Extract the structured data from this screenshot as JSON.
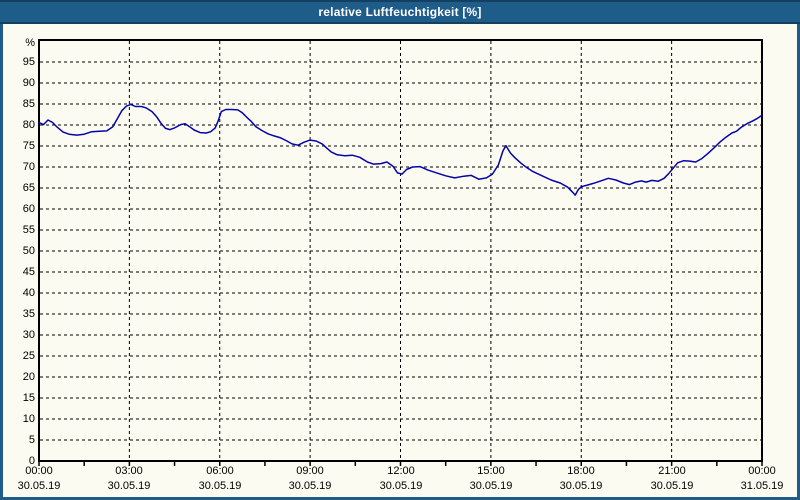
{
  "window": {
    "title": "relative Luftfeuchtigkeit [%]",
    "titlebar_color": "#1e5c8a",
    "titlebar_edge_color": "#143f61",
    "client_background_color": "#fbfbf2"
  },
  "chart_data": {
    "type": "line",
    "title": "relative Luftfeuchtigkeit [%]",
    "xlabel": "",
    "ylabel": "%",
    "ylim": [
      0,
      100
    ],
    "y_tick_step": 5,
    "y_tick_labels": [
      "95",
      "90",
      "85",
      "80",
      "75",
      "70",
      "65",
      "60",
      "55",
      "50",
      "45",
      "40",
      "35",
      "30",
      "25",
      "20",
      "15",
      "10",
      "5",
      "0"
    ],
    "x_range_hours": [
      0,
      24
    ],
    "x_minor_tick_hours": 1.5,
    "x_label_interval_hours": 3,
    "x_tick_labels": [
      {
        "hour": 0,
        "time": "00:00",
        "date": "30.05.19"
      },
      {
        "hour": 3,
        "time": "03:00",
        "date": "30.05.19"
      },
      {
        "hour": 6,
        "time": "06:00",
        "date": "30.05.19"
      },
      {
        "hour": 9,
        "time": "09:00",
        "date": "30.05.19"
      },
      {
        "hour": 12,
        "time": "12:00",
        "date": "30.05.19"
      },
      {
        "hour": 15,
        "time": "15:00",
        "date": "30.05.19"
      },
      {
        "hour": 18,
        "time": "18:00",
        "date": "30.05.19"
      },
      {
        "hour": 21,
        "time": "21:00",
        "date": "30.05.19"
      },
      {
        "hour": 24,
        "time": "00:00",
        "date": "31.05.19"
      }
    ],
    "grid": "dashed-black",
    "legend": "none",
    "frame_color": "#000000",
    "line_color": "#0404a8",
    "series": [
      {
        "name": "relative Luftfeuchtigkeit",
        "unit": "%",
        "points_hour_value": [
          [
            0,
            80.6
          ],
          [
            0.15,
            80.1
          ],
          [
            0.3,
            81.2
          ],
          [
            0.45,
            80.6
          ],
          [
            0.6,
            79.5
          ],
          [
            0.8,
            78.3
          ],
          [
            1,
            77.8
          ],
          [
            1.25,
            77.6
          ],
          [
            1.5,
            77.8
          ],
          [
            1.75,
            78.4
          ],
          [
            2,
            78.5
          ],
          [
            2.25,
            78.6
          ],
          [
            2.45,
            79.6
          ],
          [
            2.6,
            81.5
          ],
          [
            2.75,
            83.4
          ],
          [
            2.9,
            84.5
          ],
          [
            3.05,
            84.9
          ],
          [
            3.2,
            84.4
          ],
          [
            3.4,
            84.4
          ],
          [
            3.55,
            84.1
          ],
          [
            3.75,
            83.2
          ],
          [
            3.9,
            82
          ],
          [
            4.05,
            80.4
          ],
          [
            4.2,
            79.2
          ],
          [
            4.35,
            78.9
          ],
          [
            4.5,
            79.3
          ],
          [
            4.7,
            80.1
          ],
          [
            4.85,
            80.3
          ],
          [
            5,
            79.6
          ],
          [
            5.15,
            78.8
          ],
          [
            5.35,
            78.2
          ],
          [
            5.55,
            78.1
          ],
          [
            5.7,
            78.4
          ],
          [
            5.85,
            79.3
          ],
          [
            5.95,
            81
          ],
          [
            6.05,
            83.2
          ],
          [
            6.2,
            83.7
          ],
          [
            6.4,
            83.7
          ],
          [
            6.6,
            83.6
          ],
          [
            6.75,
            82.9
          ],
          [
            6.9,
            81.8
          ],
          [
            7.05,
            80.8
          ],
          [
            7.2,
            79.6
          ],
          [
            7.4,
            78.7
          ],
          [
            7.6,
            77.9
          ],
          [
            7.8,
            77.4
          ],
          [
            8,
            77
          ],
          [
            8.2,
            76.3
          ],
          [
            8.4,
            75.5
          ],
          [
            8.6,
            75.2
          ],
          [
            8.8,
            75.9
          ],
          [
            9,
            76.4
          ],
          [
            9.2,
            76.2
          ],
          [
            9.4,
            75.5
          ],
          [
            9.55,
            74.5
          ],
          [
            9.7,
            73.6
          ],
          [
            9.9,
            72.9
          ],
          [
            10.15,
            72.7
          ],
          [
            10.4,
            72.8
          ],
          [
            10.65,
            72.3
          ],
          [
            10.9,
            71.2
          ],
          [
            11.1,
            70.7
          ],
          [
            11.35,
            70.8
          ],
          [
            11.55,
            71.2
          ],
          [
            11.75,
            70.2
          ],
          [
            11.9,
            68.6
          ],
          [
            12.05,
            68.3
          ],
          [
            12.2,
            69.4
          ],
          [
            12.4,
            70
          ],
          [
            12.65,
            70.1
          ],
          [
            12.9,
            69.3
          ],
          [
            13.2,
            68.6
          ],
          [
            13.5,
            67.9
          ],
          [
            13.8,
            67.4
          ],
          [
            14.1,
            67.8
          ],
          [
            14.35,
            68
          ],
          [
            14.6,
            67.1
          ],
          [
            14.85,
            67.4
          ],
          [
            15.05,
            68.3
          ],
          [
            15.25,
            70.5
          ],
          [
            15.4,
            73.8
          ],
          [
            15.5,
            75.1
          ],
          [
            15.65,
            73.3
          ],
          [
            15.8,
            72.2
          ],
          [
            16,
            70.9
          ],
          [
            16.2,
            69.8
          ],
          [
            16.4,
            68.9
          ],
          [
            16.7,
            67.9
          ],
          [
            17,
            66.9
          ],
          [
            17.3,
            66.2
          ],
          [
            17.55,
            65.2
          ],
          [
            17.7,
            64.1
          ],
          [
            17.8,
            63.3
          ],
          [
            17.9,
            64.6
          ],
          [
            18,
            65.3
          ],
          [
            18.2,
            65.7
          ],
          [
            18.4,
            66.1
          ],
          [
            18.65,
            66.7
          ],
          [
            18.9,
            67.3
          ],
          [
            19.15,
            66.9
          ],
          [
            19.4,
            66.2
          ],
          [
            19.6,
            65.8
          ],
          [
            19.8,
            66.4
          ],
          [
            20,
            66.7
          ],
          [
            20.15,
            66.4
          ],
          [
            20.35,
            66.8
          ],
          [
            20.55,
            66.6
          ],
          [
            20.75,
            67.3
          ],
          [
            20.9,
            68.4
          ],
          [
            21.05,
            69.7
          ],
          [
            21.2,
            71
          ],
          [
            21.4,
            71.5
          ],
          [
            21.6,
            71.4
          ],
          [
            21.8,
            71.2
          ],
          [
            22,
            72
          ],
          [
            22.2,
            73.2
          ],
          [
            22.4,
            74.5
          ],
          [
            22.6,
            75.9
          ],
          [
            22.8,
            77.1
          ],
          [
            23,
            78.1
          ],
          [
            23.15,
            78.5
          ],
          [
            23.3,
            79.4
          ],
          [
            23.5,
            80.3
          ],
          [
            23.7,
            81
          ],
          [
            23.85,
            81.6
          ],
          [
            24,
            82.3
          ]
        ]
      }
    ]
  }
}
